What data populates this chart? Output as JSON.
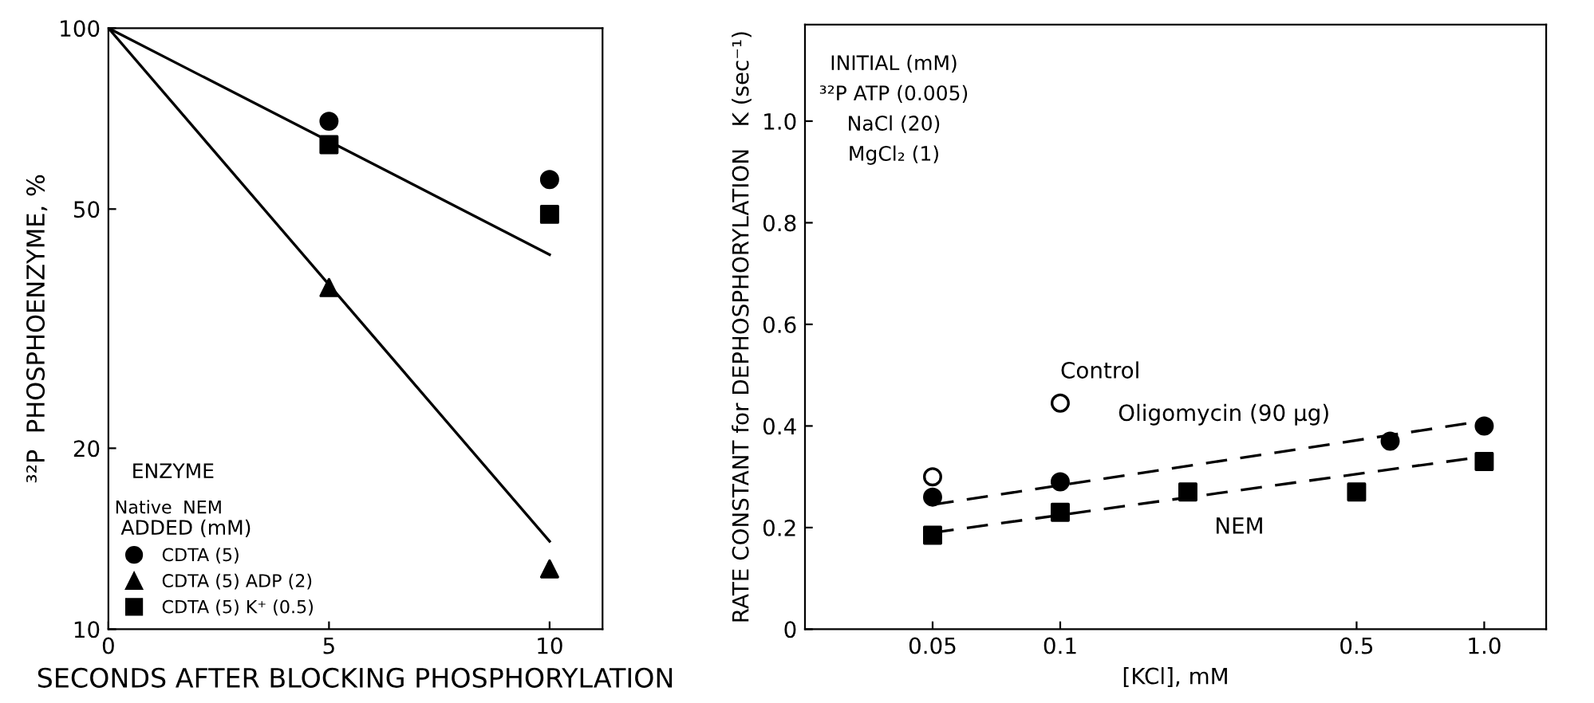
{
  "chart_data": [
    {
      "type": "scatter",
      "xlabel": "SECONDS AFTER BLOCKING PHOSPHORYLATION",
      "ylabel": "³²P  PHOSPHOENZYME, %",
      "log": "y",
      "xlim": [
        0,
        11.2
      ],
      "xticks": [
        0,
        5,
        10
      ],
      "ylim": [
        10,
        100
      ],
      "yticks": [
        10,
        20,
        50,
        100
      ],
      "grid": false,
      "legend": "bottom left",
      "legend_title": "ADDED (mM)",
      "annotations": [
        "ENZYME",
        "Native",
        "NEM"
      ],
      "series": [
        {
          "type": "line",
          "x": [
            0,
            10
          ],
          "values": [
            100,
            42
          ],
          "color": "#000000",
          "marker": "none",
          "line_style": "solid"
        },
        {
          "type": "line",
          "x": [
            0,
            10
          ],
          "values": [
            100,
            14
          ],
          "color": "#000000",
          "marker": "none",
          "line_style": "solid"
        },
        {
          "name": "CDTA (5)",
          "x": [
            5,
            10
          ],
          "values": [
            70,
            56
          ],
          "color": "#000000",
          "marker": "circle"
        },
        {
          "name": "CDTA (5) ADP (2)",
          "x": [
            5,
            10
          ],
          "values": [
            37,
            12.6
          ],
          "color": "#000000",
          "marker": "triangle"
        },
        {
          "name": "CDTA (5) K⁺ (0.5)",
          "x": [
            5,
            10
          ],
          "values": [
            64,
            49
          ],
          "color": "#000000",
          "marker": "square"
        }
      ]
    },
    {
      "type": "scatter",
      "xlabel": "[KCl], mM",
      "ylabel": "RATE CONSTANT for DEPHOSPHORYLATION   K (sec⁻¹)",
      "log": "x",
      "xlim": [
        0.025,
        1.4
      ],
      "xticks": [
        {
          "value": 0.05,
          "label": "0.05"
        },
        {
          "value": 0.1,
          "label": "0.1"
        },
        {
          "value": 0.5,
          "label": "0.5"
        },
        {
          "value": 1.0,
          "label": "1.0"
        }
      ],
      "ylim": [
        0,
        1.19
      ],
      "yticks": [
        0,
        {
          "value": 0.2,
          "label": "0.2"
        },
        {
          "value": 0.4,
          "label": "0.4"
        },
        {
          "value": 0.6,
          "label": "0.6"
        },
        {
          "value": 0.8,
          "label": "0.8"
        },
        {
          "value": 1.0,
          "label": "1.0"
        }
      ],
      "grid": false,
      "annotations": [
        "INITIAL (mM)",
        "³²P ATP (0.005)",
        "NaCl (20)",
        "MgCl₂ (1)"
      ],
      "series": [
        {
          "name": "Control",
          "x": [
            0.05,
            0.1
          ],
          "values": [
            0.3,
            0.445
          ],
          "color": "#000000",
          "marker": "open circle"
        },
        {
          "name": "Oligomycin (90 µg)",
          "x": [
            0.05,
            0.1,
            0.6,
            1.0
          ],
          "values": [
            0.26,
            0.29,
            0.37,
            0.4
          ],
          "color": "#000000",
          "marker": "circle"
        },
        {
          "name": "NEM",
          "x": [
            0.05,
            0.1,
            0.2,
            0.5,
            1.0
          ],
          "values": [
            0.185,
            0.23,
            0.27,
            0.27,
            0.33
          ],
          "color": "#000000",
          "marker": "square"
        },
        {
          "type": "line",
          "x": [
            0.05,
            1.0
          ],
          "values": [
            0.245,
            0.41
          ],
          "color": "#000000",
          "marker": "none",
          "line_style": "dashed"
        },
        {
          "type": "line",
          "x": [
            0.05,
            1.0
          ],
          "values": [
            0.19,
            0.34
          ],
          "color": "#000000",
          "marker": "none",
          "line_style": "dashed"
        }
      ]
    }
  ]
}
